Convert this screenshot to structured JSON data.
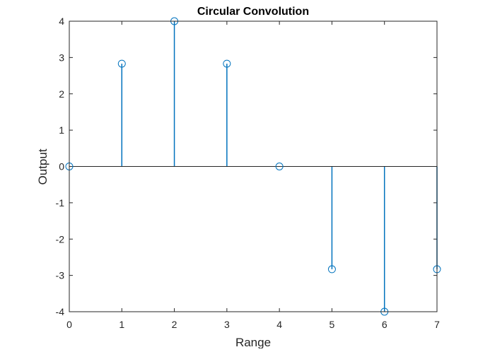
{
  "chart_data": {
    "type": "stem",
    "title": "Circular Convolution",
    "xlabel": "Range",
    "ylabel": "Output",
    "xlim": [
      0,
      7
    ],
    "ylim": [
      -4,
      4
    ],
    "xticks": [
      "0",
      "1",
      "2",
      "3",
      "4",
      "5",
      "6",
      "7"
    ],
    "yticks": [
      "-4",
      "-3",
      "-2",
      "-1",
      "0",
      "1",
      "2",
      "3",
      "4"
    ],
    "x": [
      0,
      1,
      2,
      3,
      4,
      5,
      6,
      7
    ],
    "values": [
      0,
      2.83,
      4,
      2.83,
      0,
      -2.83,
      -4,
      -2.83
    ],
    "grid": false,
    "series_color": "#0072BD",
    "marker": "circle-open",
    "baseline_y": 0
  }
}
